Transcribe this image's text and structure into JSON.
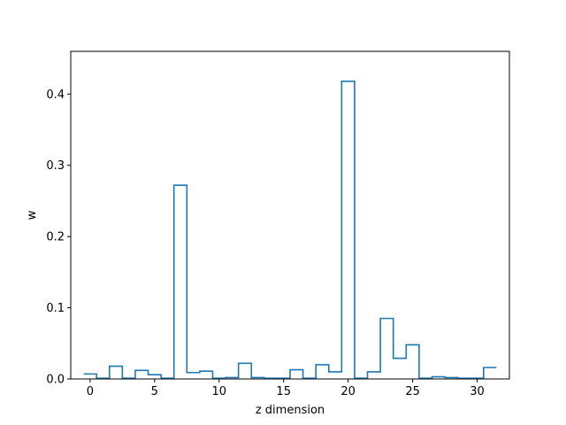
{
  "chart_data": {
    "type": "step",
    "title": "",
    "xlabel": "z dimension",
    "ylabel": "w",
    "xlim": [
      -1.5,
      32.5
    ],
    "ylim": [
      0,
      0.46
    ],
    "xticks": [
      0,
      5,
      10,
      15,
      20,
      25,
      30
    ],
    "xtick_labels": [
      "0",
      "5",
      "10",
      "15",
      "20",
      "25",
      "30"
    ],
    "yticks": [
      0.0,
      0.1,
      0.2,
      0.3,
      0.4
    ],
    "ytick_labels": [
      "0.0",
      "0.1",
      "0.2",
      "0.3",
      "0.4"
    ],
    "grid": false,
    "line_color": "#1f77b4",
    "series": [
      {
        "x": [
          0,
          1,
          2,
          3,
          4,
          5,
          6,
          7,
          8,
          9,
          10,
          11,
          12,
          13,
          14,
          15,
          16,
          17,
          18,
          19,
          20,
          21,
          22,
          23,
          24,
          25,
          26,
          27,
          28,
          29,
          30,
          31
        ],
        "values": [
          0.007,
          0.001,
          0.018,
          0.001,
          0.012,
          0.006,
          0.001,
          0.272,
          0.009,
          0.011,
          0.001,
          0.002,
          0.022,
          0.002,
          0.001,
          0.001,
          0.013,
          0.001,
          0.02,
          0.01,
          0.418,
          0.001,
          0.01,
          0.085,
          0.029,
          0.048,
          0.001,
          0.003,
          0.002,
          0.001,
          0.001,
          0.016
        ]
      }
    ]
  }
}
